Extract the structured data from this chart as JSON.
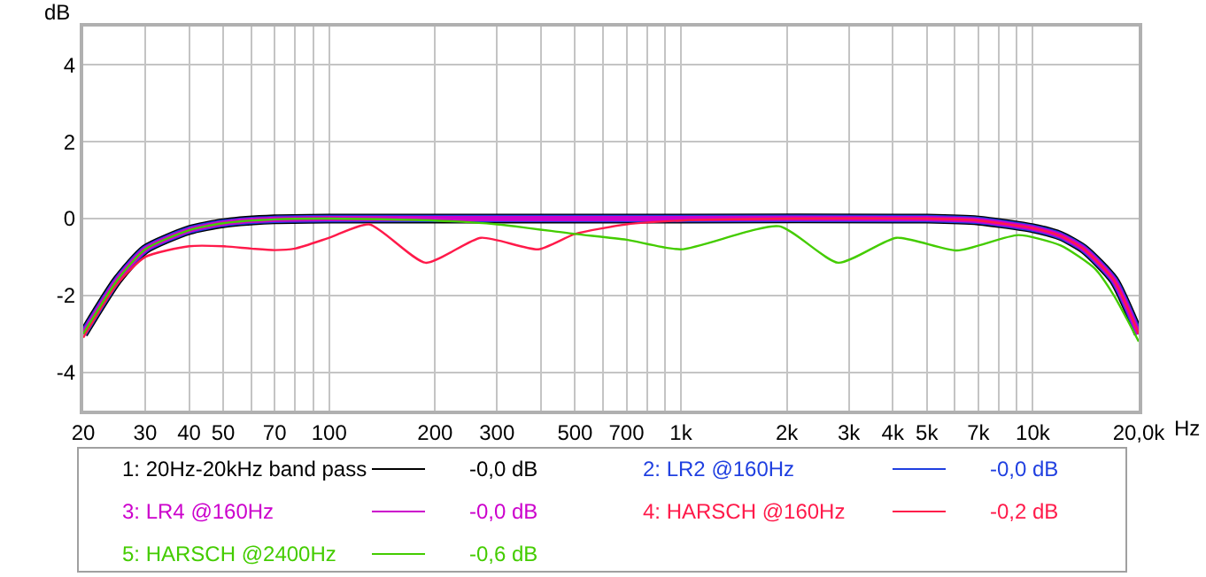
{
  "chart_data": {
    "type": "line",
    "xlabel": "Hz",
    "ylabel": "dB",
    "log": "x",
    "grid": true,
    "legend": "bottom",
    "marker": "none",
    "line_style": "solid",
    "xlim": [
      20,
      20000
    ],
    "ylim": [
      -5,
      5
    ],
    "xticks": [
      20,
      30,
      40,
      50,
      {
        "value": 60,
        "label": null
      },
      70,
      {
        "value": 80,
        "label": null
      },
      {
        "value": 90,
        "label": null
      },
      100,
      200,
      300,
      {
        "value": 400,
        "label": null
      },
      500,
      {
        "value": 600,
        "label": null
      },
      700,
      {
        "value": 800,
        "label": null
      },
      {
        "value": 900,
        "label": null
      },
      {
        "value": 1000,
        "label": "1k"
      },
      {
        "value": 2000,
        "label": "2k"
      },
      {
        "value": 3000,
        "label": "3k"
      },
      {
        "value": 4000,
        "label": "4k"
      },
      {
        "value": 5000,
        "label": "5k"
      },
      {
        "value": 6000,
        "label": null
      },
      {
        "value": 7000,
        "label": "7k"
      },
      {
        "value": 8000,
        "label": null
      },
      {
        "value": 9000,
        "label": null
      },
      {
        "value": 10000,
        "label": "10k"
      },
      {
        "value": 20000,
        "label": "20,0k"
      }
    ],
    "yticks": [
      -4,
      -2,
      0,
      2,
      4
    ],
    "annotations": [
      "-0,0 dB",
      "-0,0 dB",
      "-0,0 dB",
      "-0,2 dB",
      "-0,6 dB"
    ],
    "series": [
      {
        "name": "1: 20Hz-20kHz band pass",
        "color": "#000000",
        "x": [
          20,
          25,
          30,
          40,
          50,
          70,
          100,
          1000,
          5000,
          7000,
          10000,
          12000,
          14000,
          17000,
          20000
        ],
        "values": [
          -3.0,
          -1.6,
          -0.8,
          -0.3,
          -0.12,
          -0.02,
          0,
          0,
          0,
          -0.05,
          -0.25,
          -0.45,
          -0.8,
          -1.6,
          -3.0
        ]
      },
      {
        "name": "2: LR2 @160Hz",
        "color": "#1f3fe0",
        "x": [
          20,
          25,
          30,
          40,
          50,
          70,
          100,
          1000,
          5000,
          7000,
          10000,
          12000,
          14000,
          17000,
          20000
        ],
        "values": [
          -3.0,
          -1.6,
          -0.8,
          -0.3,
          -0.12,
          -0.02,
          0,
          0,
          0,
          -0.05,
          -0.25,
          -0.45,
          -0.8,
          -1.6,
          -3.0
        ]
      },
      {
        "name": "3: LR4 @160Hz",
        "color": "#cc00cc",
        "x": [
          20,
          25,
          30,
          40,
          50,
          70,
          100,
          1000,
          5000,
          7000,
          10000,
          12000,
          14000,
          17000,
          20000
        ],
        "values": [
          -3.0,
          -1.6,
          -0.8,
          -0.3,
          -0.12,
          -0.02,
          0,
          0,
          0,
          -0.05,
          -0.25,
          -0.45,
          -0.8,
          -1.6,
          -3.0
        ]
      },
      {
        "name": "4: HARSCH @160Hz",
        "color": "#ff1a4a",
        "x": [
          20,
          25,
          30,
          40,
          50,
          60,
          70,
          80,
          100,
          130,
          188,
          270,
          393,
          500,
          700,
          1000,
          2000,
          5000,
          7000,
          10000,
          12000,
          14000,
          17000,
          20000
        ],
        "values": [
          -3.1,
          -1.7,
          -1.0,
          -0.72,
          -0.72,
          -0.78,
          -0.82,
          -0.78,
          -0.5,
          -0.15,
          -1.15,
          -0.5,
          -0.8,
          -0.4,
          -0.15,
          -0.05,
          0,
          0,
          -0.05,
          -0.25,
          -0.45,
          -0.8,
          -1.6,
          -3.0
        ]
      },
      {
        "name": "5: HARSCH @2400Hz",
        "color": "#44cc00",
        "x": [
          20,
          25,
          30,
          40,
          50,
          70,
          100,
          200,
          300,
          500,
          700,
          1000,
          1900,
          2800,
          4100,
          6100,
          9100,
          12000,
          15000,
          17000,
          20000
        ],
        "values": [
          -3.0,
          -1.6,
          -0.8,
          -0.3,
          -0.12,
          -0.02,
          0,
          -0.05,
          -0.15,
          -0.4,
          -0.55,
          -0.8,
          -0.2,
          -1.15,
          -0.5,
          -0.83,
          -0.43,
          -0.7,
          -1.3,
          -2.0,
          -3.2
        ]
      }
    ]
  }
}
